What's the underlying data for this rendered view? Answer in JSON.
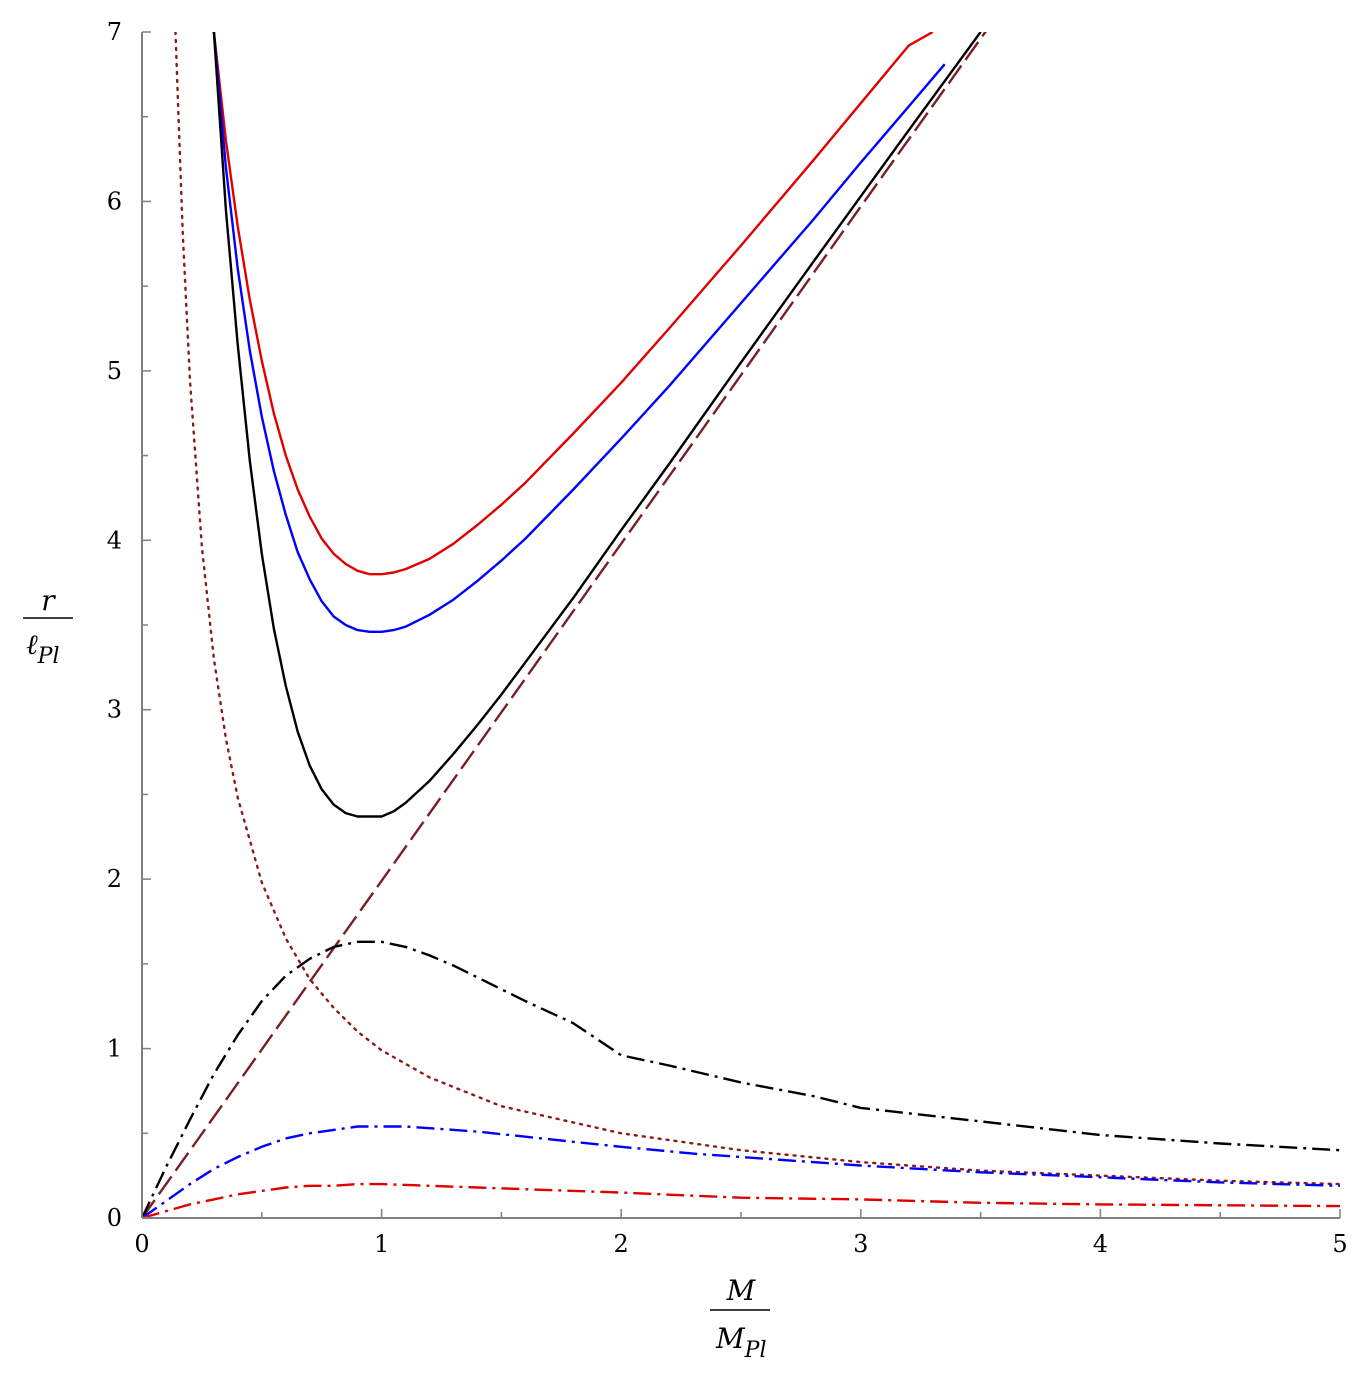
{
  "chart_data": {
    "type": "line",
    "title": "",
    "xlabel": {
      "numerator": "M",
      "denominator_main": "M",
      "denominator_sub": "Pl"
    },
    "ylabel": {
      "numerator": "r",
      "denominator_main": "ℓ",
      "denominator_sub": "Pl"
    },
    "xlim": [
      0,
      5
    ],
    "ylim": [
      0,
      7
    ],
    "x_ticks": [
      "0",
      "1",
      "2",
      "3",
      "4",
      "5"
    ],
    "y_ticks": [
      "0",
      "1",
      "2",
      "3",
      "4",
      "5",
      "6",
      "7"
    ],
    "grid": false,
    "legend": "none",
    "series": [
      {
        "color": "#e00000",
        "style": "solid",
        "x": [
          0.3,
          0.35,
          0.4,
          0.45,
          0.5,
          0.55,
          0.6,
          0.65,
          0.7,
          0.75,
          0.8,
          0.85,
          0.9,
          0.95,
          1.0,
          1.05,
          1.1,
          1.2,
          1.3,
          1.4,
          1.5,
          1.6,
          1.8,
          2.0,
          2.2,
          2.5,
          2.8,
          3.0,
          3.2,
          3.3
        ],
        "y": [
          7.0,
          6.36,
          5.85,
          5.42,
          5.06,
          4.75,
          4.5,
          4.3,
          4.14,
          4.01,
          3.92,
          3.86,
          3.82,
          3.8,
          3.8,
          3.81,
          3.83,
          3.89,
          3.98,
          4.09,
          4.21,
          4.34,
          4.63,
          4.93,
          5.25,
          5.74,
          6.24,
          6.58,
          6.92,
          7.0
        ]
      },
      {
        "color": "#0000ff",
        "style": "solid",
        "x": [
          0.3,
          0.35,
          0.4,
          0.45,
          0.5,
          0.55,
          0.6,
          0.65,
          0.7,
          0.75,
          0.8,
          0.85,
          0.9,
          0.95,
          1.0,
          1.05,
          1.1,
          1.2,
          1.3,
          1.4,
          1.5,
          1.6,
          1.8,
          2.0,
          2.2,
          2.5,
          2.8,
          3.0,
          3.2,
          3.35
        ],
        "y": [
          7.0,
          6.2,
          5.6,
          5.12,
          4.73,
          4.41,
          4.15,
          3.93,
          3.77,
          3.64,
          3.55,
          3.5,
          3.47,
          3.46,
          3.46,
          3.47,
          3.49,
          3.56,
          3.65,
          3.76,
          3.88,
          4.01,
          4.3,
          4.6,
          4.91,
          5.4,
          5.89,
          6.23,
          6.56,
          6.81
        ]
      },
      {
        "color": "#000000",
        "style": "solid",
        "x": [
          0.3,
          0.35,
          0.4,
          0.45,
          0.5,
          0.55,
          0.6,
          0.65,
          0.7,
          0.75,
          0.8,
          0.85,
          0.9,
          0.95,
          1.0,
          1.05,
          1.1,
          1.2,
          1.3,
          1.4,
          1.5,
          1.6,
          1.8,
          2.0,
          2.2,
          2.5,
          2.8,
          3.0,
          3.2,
          3.5
        ],
        "y": [
          7.0,
          5.95,
          5.15,
          4.47,
          3.92,
          3.48,
          3.14,
          2.87,
          2.67,
          2.53,
          2.44,
          2.39,
          2.37,
          2.37,
          2.37,
          2.4,
          2.45,
          2.58,
          2.74,
          2.91,
          3.09,
          3.28,
          3.66,
          4.06,
          4.45,
          5.05,
          5.64,
          6.03,
          6.42,
          7.0
        ]
      },
      {
        "color": "#7a1f25",
        "style": "dashed",
        "x": [
          0,
          1,
          2,
          3,
          3.53
        ],
        "y": [
          0,
          1.99,
          3.98,
          5.97,
          7.02
        ]
      },
      {
        "color": "#8b1a1a",
        "style": "dotted",
        "x": [
          0.14,
          0.15,
          0.17,
          0.2,
          0.25,
          0.3,
          0.35,
          0.4,
          0.5,
          0.6,
          0.7,
          0.8,
          0.9,
          1.0,
          1.2,
          1.5,
          2.0,
          2.5,
          3.0,
          3.5,
          4.0,
          4.5,
          5.0
        ],
        "y": [
          7.0,
          6.6,
          5.82,
          4.95,
          3.96,
          3.3,
          2.83,
          2.48,
          1.98,
          1.65,
          1.41,
          1.24,
          1.1,
          0.99,
          0.83,
          0.66,
          0.5,
          0.4,
          0.33,
          0.28,
          0.25,
          0.22,
          0.2
        ]
      },
      {
        "color": "#000000",
        "style": "dashdot",
        "x": [
          0,
          0.1,
          0.2,
          0.3,
          0.4,
          0.5,
          0.6,
          0.7,
          0.8,
          0.9,
          1.0,
          1.1,
          1.2,
          1.3,
          1.4,
          1.5,
          1.6,
          1.8,
          2.0,
          2.2,
          2.5,
          2.8,
          3.0,
          3.5,
          4.0,
          4.5,
          5.0
        ],
        "y": [
          0,
          0.3,
          0.58,
          0.85,
          1.08,
          1.28,
          1.43,
          1.53,
          1.6,
          1.63,
          1.63,
          1.6,
          1.55,
          1.49,
          1.42,
          1.35,
          1.28,
          1.15,
          0.96,
          0.9,
          0.8,
          0.72,
          0.65,
          0.57,
          0.49,
          0.44,
          0.4
        ]
      },
      {
        "color": "#0000ff",
        "style": "dashdot",
        "x": [
          0,
          0.1,
          0.2,
          0.3,
          0.4,
          0.5,
          0.6,
          0.7,
          0.8,
          0.9,
          1.0,
          1.1,
          1.2,
          1.4,
          1.6,
          1.8,
          2.0,
          2.3,
          2.6,
          3.0,
          3.5,
          4.0,
          4.5,
          5.0
        ],
        "y": [
          0,
          0.1,
          0.2,
          0.29,
          0.36,
          0.42,
          0.47,
          0.5,
          0.52,
          0.54,
          0.54,
          0.54,
          0.53,
          0.51,
          0.48,
          0.45,
          0.42,
          0.38,
          0.35,
          0.31,
          0.27,
          0.24,
          0.21,
          0.19
        ]
      },
      {
        "color": "#e00000",
        "style": "dashdot",
        "x": [
          0,
          0.1,
          0.2,
          0.3,
          0.4,
          0.5,
          0.6,
          0.7,
          0.8,
          0.9,
          1.0,
          1.2,
          1.4,
          1.6,
          1.8,
          2.0,
          2.5,
          3.0,
          3.5,
          4.0,
          4.5,
          5.0
        ],
        "y": [
          0,
          0.04,
          0.08,
          0.11,
          0.14,
          0.16,
          0.18,
          0.19,
          0.19,
          0.2,
          0.2,
          0.19,
          0.18,
          0.17,
          0.16,
          0.15,
          0.12,
          0.11,
          0.09,
          0.08,
          0.075,
          0.07
        ]
      }
    ]
  }
}
